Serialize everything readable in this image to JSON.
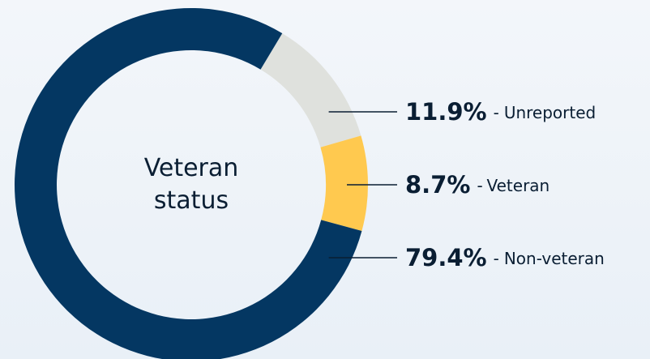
{
  "chart_data": {
    "type": "pie",
    "donut": true,
    "center_label": "Veteran status",
    "categories": [
      "Unreported",
      "Veteran",
      "Non-veteran"
    ],
    "values": [
      11.9,
      8.7,
      79.4
    ],
    "value_labels": [
      "11.9%",
      "8.7%",
      "79.4%"
    ],
    "label_separator": "-",
    "colors": [
      "#dfe1dd",
      "#ffc94f",
      "#043762"
    ]
  }
}
